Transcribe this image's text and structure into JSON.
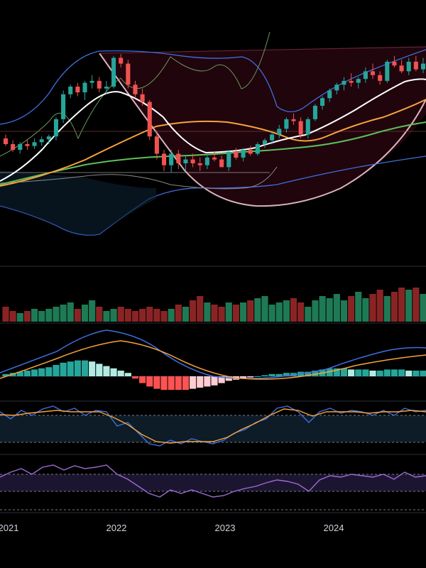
{
  "colors": {
    "background": "#000000",
    "up": "#26a69a",
    "down": "#ef5350",
    "vol_up": "#1e7a55",
    "vol_down": "#8a2424",
    "sma_fast": "#ffffff",
    "sma_mid": "#f7a33c",
    "sma_slow": "#5fbf5a",
    "bb": "#3f6fe0",
    "kc": "#6b9a5a",
    "macd": "#3f6fe0",
    "signal": "#f7a33c",
    "hist_pos_strong": "#26a69a",
    "hist_pos_weak": "#b2ebe2",
    "hist_neg_strong": "#ff5252",
    "hist_neg_weak": "#ffcdd2",
    "stoch_k": "#3f6fe0",
    "stoch_d": "#f7a33c",
    "rsi": "#9c6bd6",
    "cup": "#d9b3bd"
  },
  "chart_data": {
    "type": "candlestick",
    "x_labels": [
      "2021",
      "2022",
      "2023",
      "2024"
    ],
    "price_range": [
      0,
      100
    ],
    "candles": [
      {
        "o": 26,
        "h": 30,
        "l": 18,
        "c": 20
      },
      {
        "o": 20,
        "h": 24,
        "l": 12,
        "c": 14
      },
      {
        "o": 14,
        "h": 22,
        "l": 10,
        "c": 20
      },
      {
        "o": 20,
        "h": 24,
        "l": 14,
        "c": 18
      },
      {
        "o": 18,
        "h": 26,
        "l": 15,
        "c": 22
      },
      {
        "o": 22,
        "h": 28,
        "l": 18,
        "c": 25
      },
      {
        "o": 25,
        "h": 30,
        "l": 20,
        "c": 28
      },
      {
        "o": 28,
        "h": 48,
        "l": 24,
        "c": 46
      },
      {
        "o": 46,
        "h": 76,
        "l": 42,
        "c": 72
      },
      {
        "o": 72,
        "h": 82,
        "l": 68,
        "c": 80
      },
      {
        "o": 80,
        "h": 84,
        "l": 70,
        "c": 74
      },
      {
        "o": 74,
        "h": 86,
        "l": 66,
        "c": 84
      },
      {
        "o": 84,
        "h": 92,
        "l": 78,
        "c": 86
      },
      {
        "o": 86,
        "h": 90,
        "l": 74,
        "c": 78
      },
      {
        "o": 78,
        "h": 86,
        "l": 72,
        "c": 80
      },
      {
        "o": 80,
        "h": 112,
        "l": 78,
        "c": 110
      },
      {
        "o": 110,
        "h": 114,
        "l": 100,
        "c": 104
      },
      {
        "o": 104,
        "h": 108,
        "l": 78,
        "c": 82
      },
      {
        "o": 82,
        "h": 86,
        "l": 68,
        "c": 72
      },
      {
        "o": 72,
        "h": 78,
        "l": 60,
        "c": 64
      },
      {
        "o": 64,
        "h": 66,
        "l": 24,
        "c": 28
      },
      {
        "o": 28,
        "h": 34,
        "l": 4,
        "c": 10
      },
      {
        "o": 10,
        "h": 14,
        "l": -8,
        "c": -2
      },
      {
        "o": -2,
        "h": 14,
        "l": -10,
        "c": 10
      },
      {
        "o": 10,
        "h": 14,
        "l": -6,
        "c": 0
      },
      {
        "o": 0,
        "h": 8,
        "l": -8,
        "c": 4
      },
      {
        "o": 4,
        "h": 10,
        "l": -4,
        "c": 0
      },
      {
        "o": 0,
        "h": 6,
        "l": -8,
        "c": -2
      },
      {
        "o": -2,
        "h": 8,
        "l": -6,
        "c": 6
      },
      {
        "o": 6,
        "h": 12,
        "l": 2,
        "c": 4
      },
      {
        "o": 4,
        "h": 8,
        "l": -4,
        "c": -4
      },
      {
        "o": -4,
        "h": 14,
        "l": -8,
        "c": 12
      },
      {
        "o": 12,
        "h": 16,
        "l": 4,
        "c": 6
      },
      {
        "o": 6,
        "h": 16,
        "l": 2,
        "c": 14
      },
      {
        "o": 14,
        "h": 18,
        "l": 8,
        "c": 10
      },
      {
        "o": 10,
        "h": 22,
        "l": 8,
        "c": 20
      },
      {
        "o": 20,
        "h": 26,
        "l": 16,
        "c": 24
      },
      {
        "o": 24,
        "h": 34,
        "l": 20,
        "c": 30
      },
      {
        "o": 30,
        "h": 40,
        "l": 26,
        "c": 36
      },
      {
        "o": 36,
        "h": 48,
        "l": 32,
        "c": 46
      },
      {
        "o": 46,
        "h": 52,
        "l": 40,
        "c": 44
      },
      {
        "o": 44,
        "h": 48,
        "l": 26,
        "c": 30
      },
      {
        "o": 30,
        "h": 48,
        "l": 26,
        "c": 46
      },
      {
        "o": 46,
        "h": 62,
        "l": 44,
        "c": 60
      },
      {
        "o": 60,
        "h": 70,
        "l": 56,
        "c": 68
      },
      {
        "o": 68,
        "h": 78,
        "l": 64,
        "c": 76
      },
      {
        "o": 76,
        "h": 84,
        "l": 72,
        "c": 82
      },
      {
        "o": 82,
        "h": 90,
        "l": 76,
        "c": 86
      },
      {
        "o": 86,
        "h": 94,
        "l": 80,
        "c": 84
      },
      {
        "o": 84,
        "h": 90,
        "l": 78,
        "c": 88
      },
      {
        "o": 88,
        "h": 100,
        "l": 84,
        "c": 96
      },
      {
        "o": 96,
        "h": 104,
        "l": 88,
        "c": 92
      },
      {
        "o": 92,
        "h": 96,
        "l": 82,
        "c": 86
      },
      {
        "o": 86,
        "h": 108,
        "l": 84,
        "c": 106
      },
      {
        "o": 106,
        "h": 112,
        "l": 100,
        "c": 102
      },
      {
        "o": 102,
        "h": 108,
        "l": 94,
        "c": 96
      },
      {
        "o": 96,
        "h": 110,
        "l": 92,
        "c": 106
      },
      {
        "o": 106,
        "h": 112,
        "l": 96,
        "c": 98
      },
      {
        "o": 98,
        "h": 110,
        "l": 94,
        "c": 104
      }
    ],
    "volume": [
      14,
      10,
      8,
      10,
      12,
      10,
      12,
      14,
      16,
      18,
      12,
      16,
      20,
      14,
      10,
      12,
      14,
      12,
      10,
      12,
      14,
      12,
      10,
      12,
      16,
      14,
      20,
      24,
      18,
      16,
      14,
      18,
      16,
      18,
      20,
      22,
      24,
      16,
      18,
      20,
      22,
      18,
      14,
      20,
      24,
      22,
      26,
      20,
      24,
      28,
      22,
      26,
      30,
      24,
      28,
      32,
      30,
      32,
      26
    ],
    "macd_hist": [
      2,
      3,
      4,
      5,
      6,
      7,
      8,
      10,
      12,
      13,
      14,
      14,
      13,
      11,
      9,
      7,
      5,
      3,
      -2,
      -6,
      -9,
      -11,
      -12,
      -12,
      -12,
      -12,
      -11,
      -10,
      -9,
      -8,
      -6,
      -4,
      -3,
      -2,
      -1,
      0,
      1,
      2,
      2,
      3,
      3,
      4,
      4,
      5,
      6,
      7,
      7,
      7,
      6,
      6,
      6,
      5,
      5,
      6,
      6,
      6,
      5,
      5,
      5
    ],
    "rsi_range": [
      0,
      100
    ]
  }
}
